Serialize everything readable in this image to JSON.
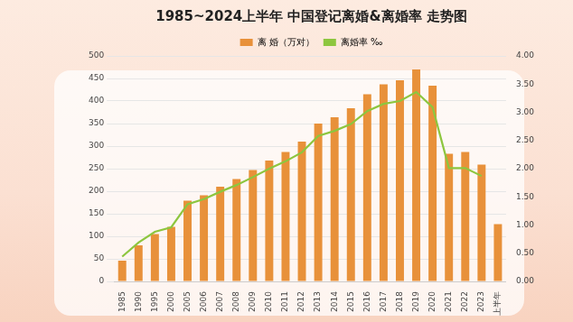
{
  "chart_data": {
    "type": "bar",
    "title": "1985~2024上半年 中国登记离婚&离婚率 走势图",
    "categories": [
      "1985",
      "1990",
      "1995",
      "2000",
      "2005",
      "2006",
      "2007",
      "2008",
      "2009",
      "2010",
      "2011",
      "2012",
      "2013",
      "2014",
      "2015",
      "2016",
      "2017",
      "2018",
      "2019",
      "2020",
      "2021",
      "2022",
      "2023",
      "上半年"
    ],
    "series": [
      {
        "name": "离 婚（万对）",
        "type": "bar",
        "color": "#e8913a",
        "values": [
          46,
          80,
          105,
          121,
          179,
          191,
          210,
          227,
          247,
          268,
          287,
          310,
          350,
          364,
          384,
          415,
          437,
          446,
          470,
          434,
          283,
          287,
          259,
          127
        ]
      },
      {
        "name": "离婚率 ‰",
        "type": "line",
        "color": "#8dc63f",
        "axis": "y2",
        "marker": "none",
        "line_style": "solid",
        "values": [
          0.44,
          0.69,
          0.88,
          0.96,
          1.37,
          1.46,
          1.59,
          1.71,
          1.85,
          2.0,
          2.13,
          2.29,
          2.58,
          2.67,
          2.79,
          3.02,
          3.15,
          3.2,
          3.36,
          3.09,
          2.01,
          2.01,
          1.87,
          null
        ]
      }
    ],
    "ylim": [
      0,
      500
    ],
    "yticks": [
      0,
      50,
      100,
      150,
      200,
      250,
      300,
      350,
      400,
      450,
      500
    ],
    "y2lim": [
      0,
      4
    ],
    "y2ticks": [
      {
        "value": 0,
        "label": "0.00"
      },
      {
        "value": 0.5,
        "label": "0.50"
      },
      {
        "value": 1,
        "label": "1.00"
      },
      {
        "value": 1.5,
        "label": "1.50"
      },
      {
        "value": 2,
        "label": "2.00"
      },
      {
        "value": 2.5,
        "label": "2.50"
      },
      {
        "value": 3,
        "label": "3.00"
      },
      {
        "value": 3.5,
        "label": "3.50"
      },
      {
        "value": 4,
        "label": "4.00"
      }
    ],
    "grid": true,
    "legend": "top"
  }
}
